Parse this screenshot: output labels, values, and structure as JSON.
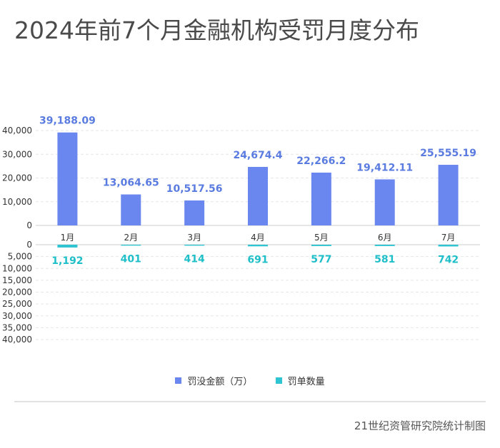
{
  "title": "2024年前7个月金融机构受罚月度分布",
  "source": "21世纪资管研究院统计制图",
  "colors": {
    "fine": "#6a87f0",
    "count": "#2ec4d1",
    "fine_label": "#5a7be0",
    "count_label": "#1fbfc9",
    "grid": "#e6e6e6",
    "axis": "#cccccc",
    "tick": "#333333"
  },
  "chart_data": {
    "type": "bar",
    "categories": [
      "1月",
      "2月",
      "3月",
      "4月",
      "5月",
      "6月",
      "7月"
    ],
    "series": [
      {
        "name": "罚没金额（万）",
        "values": [
          39188.09,
          13064.65,
          10517.56,
          24674.4,
          22266.2,
          19412.11,
          25555.19
        ],
        "labels": [
          "39,188.09",
          "13,064.65",
          "10,517.56",
          "24,674.4",
          "22,266.2",
          "19,412.11",
          "25,555.19"
        ]
      },
      {
        "name": "罚单数量",
        "values": [
          1192,
          401,
          414,
          691,
          577,
          581,
          742
        ],
        "labels": [
          "1,192",
          "401",
          "414",
          "691",
          "577",
          "581",
          "742"
        ]
      }
    ],
    "upper_axis": {
      "ylim": [
        0,
        40000
      ],
      "ticks": [
        "0",
        "10,000",
        "20,000",
        "30,000",
        "40,000"
      ]
    },
    "lower_axis": {
      "ylim": [
        0,
        40000
      ],
      "inverted": true,
      "ticks": [
        "0",
        "5,000",
        "10,000",
        "15,000",
        "20,000",
        "25,000",
        "30,000",
        "35,000",
        "40,000"
      ]
    },
    "grid": true,
    "legend_position": "bottom"
  }
}
